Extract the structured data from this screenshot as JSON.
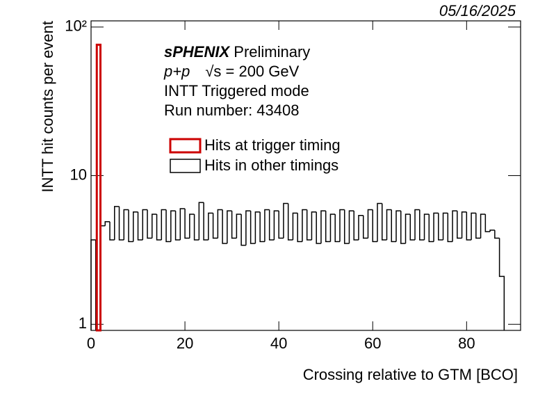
{
  "chart_data": {
    "type": "histogram",
    "date": "05/16/2025",
    "brand": "sPHENIX",
    "brand_suffix": "Preliminary",
    "collision": "p+p",
    "energy": "√s = 200 GeV",
    "mode": "INTT Triggered mode",
    "run": "Run number: 43408",
    "xlabel": "Crossing relative to GTM [BCO]",
    "ylabel": "INTT hit counts per event",
    "log_y": true,
    "xlim": [
      0,
      91.5
    ],
    "ylim": [
      0.91,
      110
    ],
    "xticks": [
      0,
      20,
      40,
      60,
      80
    ],
    "yticks": [
      1,
      10,
      {
        "value": 100,
        "label": "10²"
      }
    ],
    "bins": [
      0,
      1,
      2,
      3,
      4,
      5,
      6,
      7,
      8,
      9,
      10,
      11,
      12,
      13,
      14,
      15,
      16,
      17,
      18,
      19,
      20,
      21,
      22,
      23,
      24,
      25,
      26,
      27,
      28,
      29,
      30,
      31,
      32,
      33,
      34,
      35,
      36,
      37,
      38,
      39,
      40,
      41,
      42,
      43,
      44,
      45,
      46,
      47,
      48,
      49,
      50,
      51,
      52,
      53,
      54,
      55,
      56,
      57,
      58,
      59,
      60,
      61,
      62,
      63,
      64,
      65,
      66,
      67,
      68,
      69,
      70,
      71,
      72,
      73,
      74,
      75,
      76,
      77,
      78,
      79,
      80,
      81,
      82,
      83,
      84,
      85,
      86,
      87,
      88
    ],
    "series": [
      {
        "name": "Hits at trigger timing",
        "color": "#cc0000",
        "values": [
          null,
          76,
          null,
          null,
          null,
          null,
          null,
          null,
          null,
          null,
          null,
          null,
          null,
          null,
          null,
          null,
          null,
          null,
          null,
          null,
          null,
          null,
          null,
          null,
          null,
          null,
          null,
          null,
          null,
          null,
          null,
          null,
          null,
          null,
          null,
          null,
          null,
          null,
          null,
          null,
          null,
          null,
          null,
          null,
          null,
          null,
          null,
          null,
          null,
          null,
          null,
          null,
          null,
          null,
          null,
          null,
          null,
          null,
          null,
          null,
          null,
          null,
          null,
          null,
          null,
          null,
          null,
          null,
          null,
          null,
          null,
          null,
          null,
          null,
          null,
          null,
          null,
          null,
          null,
          null,
          null,
          null,
          null,
          null,
          null,
          null,
          null,
          null
        ]
      },
      {
        "name": "Hits in other timings",
        "color": "#000000",
        "values": [
          3.7,
          null,
          4.6,
          4.9,
          3.7,
          6.2,
          3.7,
          5.9,
          3.6,
          5.7,
          3.7,
          5.9,
          3.8,
          5.5,
          3.7,
          5.9,
          3.6,
          5.8,
          3.7,
          6.0,
          3.8,
          5.5,
          3.7,
          6.6,
          3.7,
          5.6,
          3.8,
          5.9,
          3.5,
          5.8,
          3.8,
          5.5,
          3.4,
          5.8,
          3.5,
          5.7,
          3.6,
          5.9,
          3.7,
          5.8,
          3.8,
          6.5,
          3.7,
          5.6,
          3.6,
          5.9,
          3.7,
          5.7,
          3.5,
          5.8,
          3.6,
          5.5,
          3.6,
          5.9,
          3.5,
          5.8,
          3.7,
          5.4,
          3.8,
          5.9,
          3.6,
          6.5,
          3.7,
          5.9,
          3.6,
          5.8,
          3.5,
          5.5,
          3.7,
          5.9,
          3.7,
          5.5,
          3.6,
          5.6,
          3.7,
          5.6,
          3.6,
          5.8,
          3.8,
          5.7,
          3.7,
          5.6,
          3.8,
          5.5,
          4.2,
          4.3,
          3.8,
          2.1
        ]
      }
    ]
  }
}
